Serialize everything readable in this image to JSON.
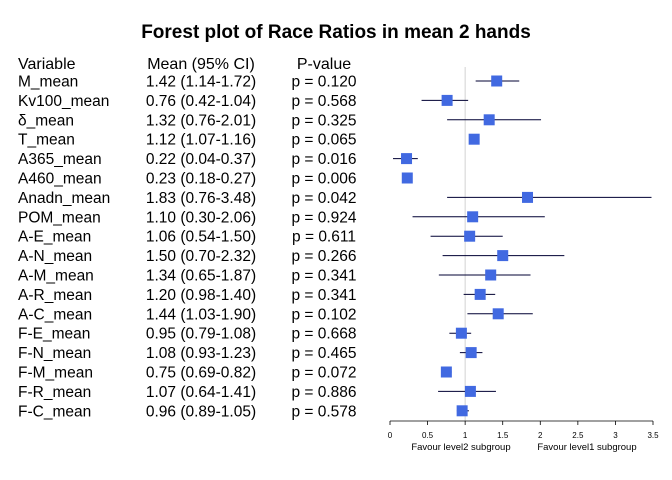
{
  "chart_data": {
    "type": "forest",
    "title": "Forest plot of Race Ratios in mean 2 hands",
    "columns": {
      "variable": "Variable",
      "estimate": "Mean (95% CI)",
      "pvalue": "P-value"
    },
    "reference_value": 1,
    "xlim": [
      0,
      3.5
    ],
    "x_ticks": [
      0,
      0.5,
      1,
      1.5,
      2,
      2.5,
      3,
      3.5
    ],
    "x_tick_labels": [
      "0",
      "0.5",
      "1",
      "1.5",
      "2",
      "2.5",
      "3",
      "3.5"
    ],
    "favour_left": "Favour level2 subgroup",
    "favour_right": "Favour level1 subgroup",
    "marker_color": "#4169e1",
    "rows": [
      {
        "variable": "M_mean",
        "mean": 1.42,
        "lo": 1.14,
        "hi": 1.72,
        "ci_text": "1.42 (1.14-1.72)",
        "p_text": "p = 0.120"
      },
      {
        "variable": "Kv100_mean",
        "mean": 0.76,
        "lo": 0.42,
        "hi": 1.04,
        "ci_text": "0.76 (0.42-1.04)",
        "p_text": "p = 0.568"
      },
      {
        "variable": "δ_mean",
        "mean": 1.32,
        "lo": 0.76,
        "hi": 2.01,
        "ci_text": "1.32 (0.76-2.01)",
        "p_text": "p = 0.325"
      },
      {
        "variable": "T_mean",
        "mean": 1.12,
        "lo": 1.07,
        "hi": 1.16,
        "ci_text": "1.12 (1.07-1.16)",
        "p_text": "p = 0.065"
      },
      {
        "variable": "A365_mean",
        "mean": 0.22,
        "lo": 0.04,
        "hi": 0.37,
        "ci_text": "0.22 (0.04-0.37)",
        "p_text": "p = 0.016"
      },
      {
        "variable": "A460_mean",
        "mean": 0.23,
        "lo": 0.18,
        "hi": 0.27,
        "ci_text": "0.23 (0.18-0.27)",
        "p_text": "p = 0.006"
      },
      {
        "variable": "Anadn_mean",
        "mean": 1.83,
        "lo": 0.76,
        "hi": 3.48,
        "ci_text": "1.83 (0.76-3.48)",
        "p_text": "p = 0.042"
      },
      {
        "variable": "POM_mean",
        "mean": 1.1,
        "lo": 0.3,
        "hi": 2.06,
        "ci_text": "1.10 (0.30-2.06)",
        "p_text": "p = 0.924"
      },
      {
        "variable": "A-E_mean",
        "mean": 1.06,
        "lo": 0.54,
        "hi": 1.5,
        "ci_text": "1.06 (0.54-1.50)",
        "p_text": "p = 0.611"
      },
      {
        "variable": "A-N_mean",
        "mean": 1.5,
        "lo": 0.7,
        "hi": 2.32,
        "ci_text": "1.50 (0.70-2.32)",
        "p_text": "p = 0.266"
      },
      {
        "variable": "A-M_mean",
        "mean": 1.34,
        "lo": 0.65,
        "hi": 1.87,
        "ci_text": "1.34 (0.65-1.87)",
        "p_text": "p = 0.341"
      },
      {
        "variable": "A-R_mean",
        "mean": 1.2,
        "lo": 0.98,
        "hi": 1.4,
        "ci_text": "1.20 (0.98-1.40)",
        "p_text": "p = 0.341"
      },
      {
        "variable": "A-C_mean",
        "mean": 1.44,
        "lo": 1.03,
        "hi": 1.9,
        "ci_text": "1.44 (1.03-1.90)",
        "p_text": "p = 0.102"
      },
      {
        "variable": "F-E_mean",
        "mean": 0.95,
        "lo": 0.79,
        "hi": 1.08,
        "ci_text": "0.95 (0.79-1.08)",
        "p_text": "p = 0.668"
      },
      {
        "variable": "F-N_mean",
        "mean": 1.08,
        "lo": 0.93,
        "hi": 1.23,
        "ci_text": "1.08 (0.93-1.23)",
        "p_text": "p = 0.465"
      },
      {
        "variable": "F-M_mean",
        "mean": 0.75,
        "lo": 0.69,
        "hi": 0.82,
        "ci_text": "0.75 (0.69-0.82)",
        "p_text": "p = 0.072"
      },
      {
        "variable": "F-R_mean",
        "mean": 1.07,
        "lo": 0.64,
        "hi": 1.41,
        "ci_text": "1.07 (0.64-1.41)",
        "p_text": "p = 0.886"
      },
      {
        "variable": "F-C_mean",
        "mean": 0.96,
        "lo": 0.89,
        "hi": 1.05,
        "ci_text": "0.96 (0.89-1.05)",
        "p_text": "p = 0.578"
      }
    ]
  }
}
